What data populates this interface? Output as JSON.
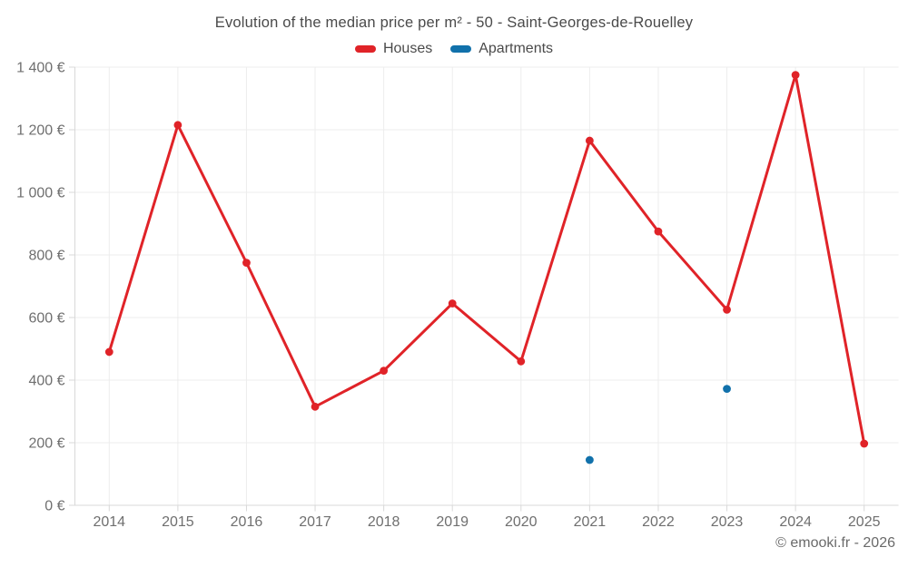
{
  "chart_data": {
    "type": "line",
    "title": "Evolution of the median price per m² - 50 - Saint-Georges-de-Rouelley",
    "categories": [
      "2014",
      "2015",
      "2016",
      "2017",
      "2018",
      "2019",
      "2020",
      "2021",
      "2022",
      "2023",
      "2024",
      "2025"
    ],
    "series": [
      {
        "name": "Houses",
        "color": "#e02328",
        "values": [
          490,
          1215,
          775,
          315,
          430,
          645,
          460,
          1165,
          875,
          625,
          1375,
          197
        ]
      },
      {
        "name": "Apartments",
        "color": "#1171ab",
        "values": [
          null,
          null,
          null,
          null,
          null,
          null,
          null,
          145,
          null,
          372,
          null,
          null
        ]
      }
    ],
    "xlabel": "",
    "ylabel": "",
    "y_unit": "€",
    "ylim": [
      0,
      1400
    ],
    "ytick_step": 200,
    "grid": true,
    "legend_position": "top",
    "grid_color": "#ededed",
    "axis_color": "#d8d8d8",
    "tick_label_color": "#6f6f6f"
  },
  "footer": {
    "copyright": "© emooki.fr - 2026"
  }
}
